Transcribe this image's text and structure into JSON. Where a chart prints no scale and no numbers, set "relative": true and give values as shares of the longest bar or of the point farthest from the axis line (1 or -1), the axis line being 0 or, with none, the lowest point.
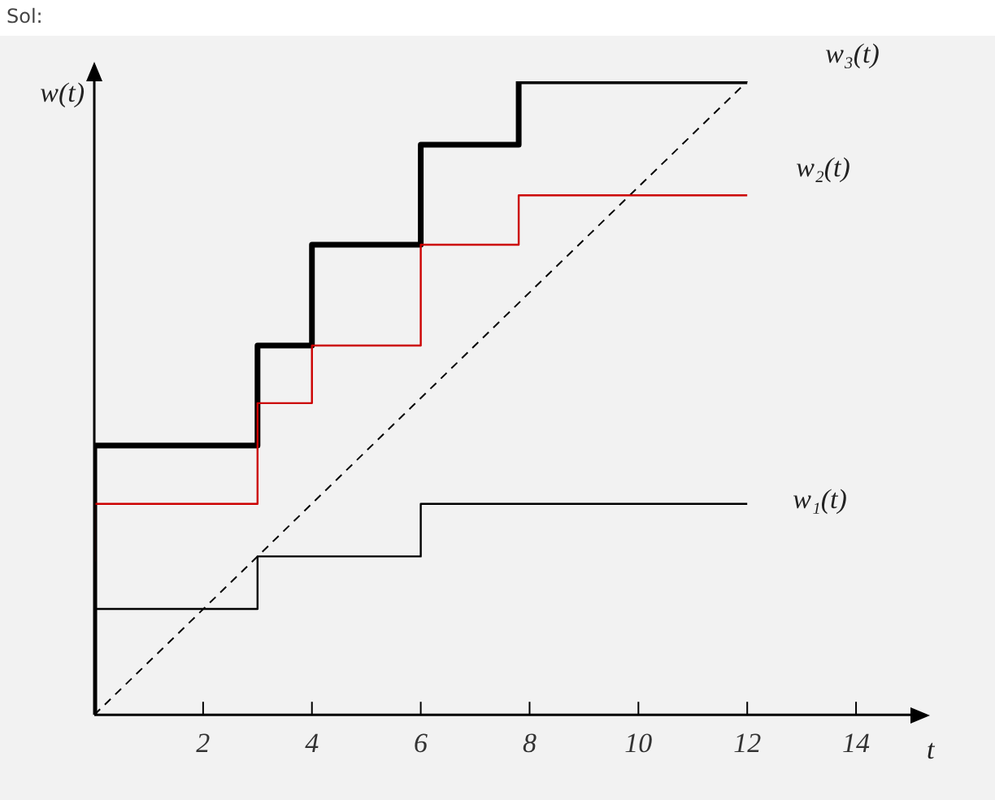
{
  "chart_data": {
    "type": "step",
    "relative": true,
    "xlabel": "t",
    "ylabel": "w(t)",
    "annotations": [
      "Sol:"
    ],
    "xlim": [
      0,
      15
    ],
    "xticks": [
      2,
      4,
      6,
      8,
      10,
      12,
      14
    ],
    "grid": false,
    "legend": false,
    "marker": "none",
    "series": [
      {
        "name": "w₁(t)",
        "color": "#000000",
        "x": [
          0,
          0,
          3,
          6,
          9,
          12
        ],
        "values": [
          0,
          0.083,
          0.167,
          0.25,
          0.333,
          0.333
        ]
      },
      {
        "name": "w₂(t)",
        "color": "#cc0000",
        "x": [
          0,
          3,
          4,
          6,
          7.8,
          9,
          12
        ],
        "values": [
          0.242,
          0.333,
          0.492,
          0.583,
          0.742,
          0.82,
          0.82
        ]
      },
      {
        "name": "w₃(t)",
        "color": "#000000",
        "x": [
          0,
          0,
          3,
          4,
          6,
          7.8,
          9,
          12
        ],
        "values": [
          0,
          0.333,
          0.425,
          0.583,
          0.742,
          0.9,
          1,
          1
        ]
      },
      {
        "type": "line",
        "color": "#000000",
        "line_style": "dashed",
        "x": [
          0,
          12
        ],
        "values": [
          0,
          1
        ]
      }
    ]
  }
}
